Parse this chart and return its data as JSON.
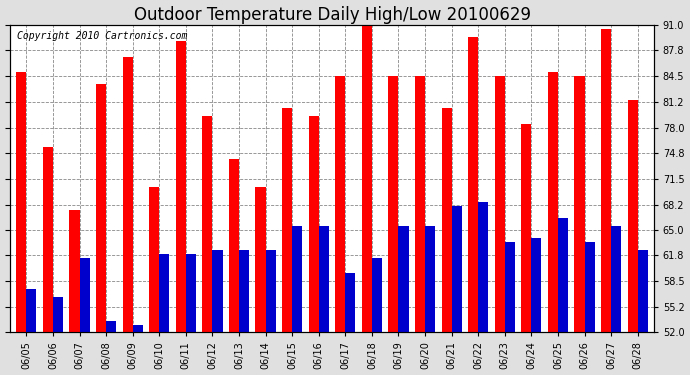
{
  "title": "Outdoor Temperature Daily High/Low 20100629",
  "copyright": "Copyright 2010 Cartronics.com",
  "dates": [
    "06/05",
    "06/06",
    "06/07",
    "06/08",
    "06/09",
    "06/10",
    "06/11",
    "06/12",
    "06/13",
    "06/14",
    "06/15",
    "06/16",
    "06/17",
    "06/18",
    "06/19",
    "06/20",
    "06/21",
    "06/22",
    "06/23",
    "06/24",
    "06/25",
    "06/26",
    "06/27",
    "06/28"
  ],
  "highs": [
    85.0,
    75.5,
    67.5,
    83.5,
    87.0,
    70.5,
    89.0,
    79.5,
    74.0,
    70.5,
    80.5,
    79.5,
    84.5,
    92.0,
    84.5,
    84.5,
    80.5,
    89.5,
    84.5,
    78.5,
    85.0,
    84.5,
    90.5,
    81.5
  ],
  "lows": [
    57.5,
    56.5,
    61.5,
    53.5,
    53.0,
    62.0,
    62.0,
    62.5,
    62.5,
    62.5,
    65.5,
    65.5,
    59.5,
    61.5,
    65.5,
    65.5,
    68.0,
    68.5,
    63.5,
    64.0,
    66.5,
    63.5,
    65.5,
    62.5
  ],
  "high_color": "#ff0000",
  "low_color": "#0000cc",
  "bg_color": "#e0e0e0",
  "plot_bg": "#ffffff",
  "ymin": 52.0,
  "ymax": 91.0,
  "yticks": [
    52.0,
    55.2,
    58.5,
    61.8,
    65.0,
    68.2,
    71.5,
    74.8,
    78.0,
    81.2,
    84.5,
    87.8,
    91.0
  ],
  "bar_width": 0.38,
  "title_fontsize": 12,
  "tick_fontsize": 7,
  "copyright_fontsize": 7
}
